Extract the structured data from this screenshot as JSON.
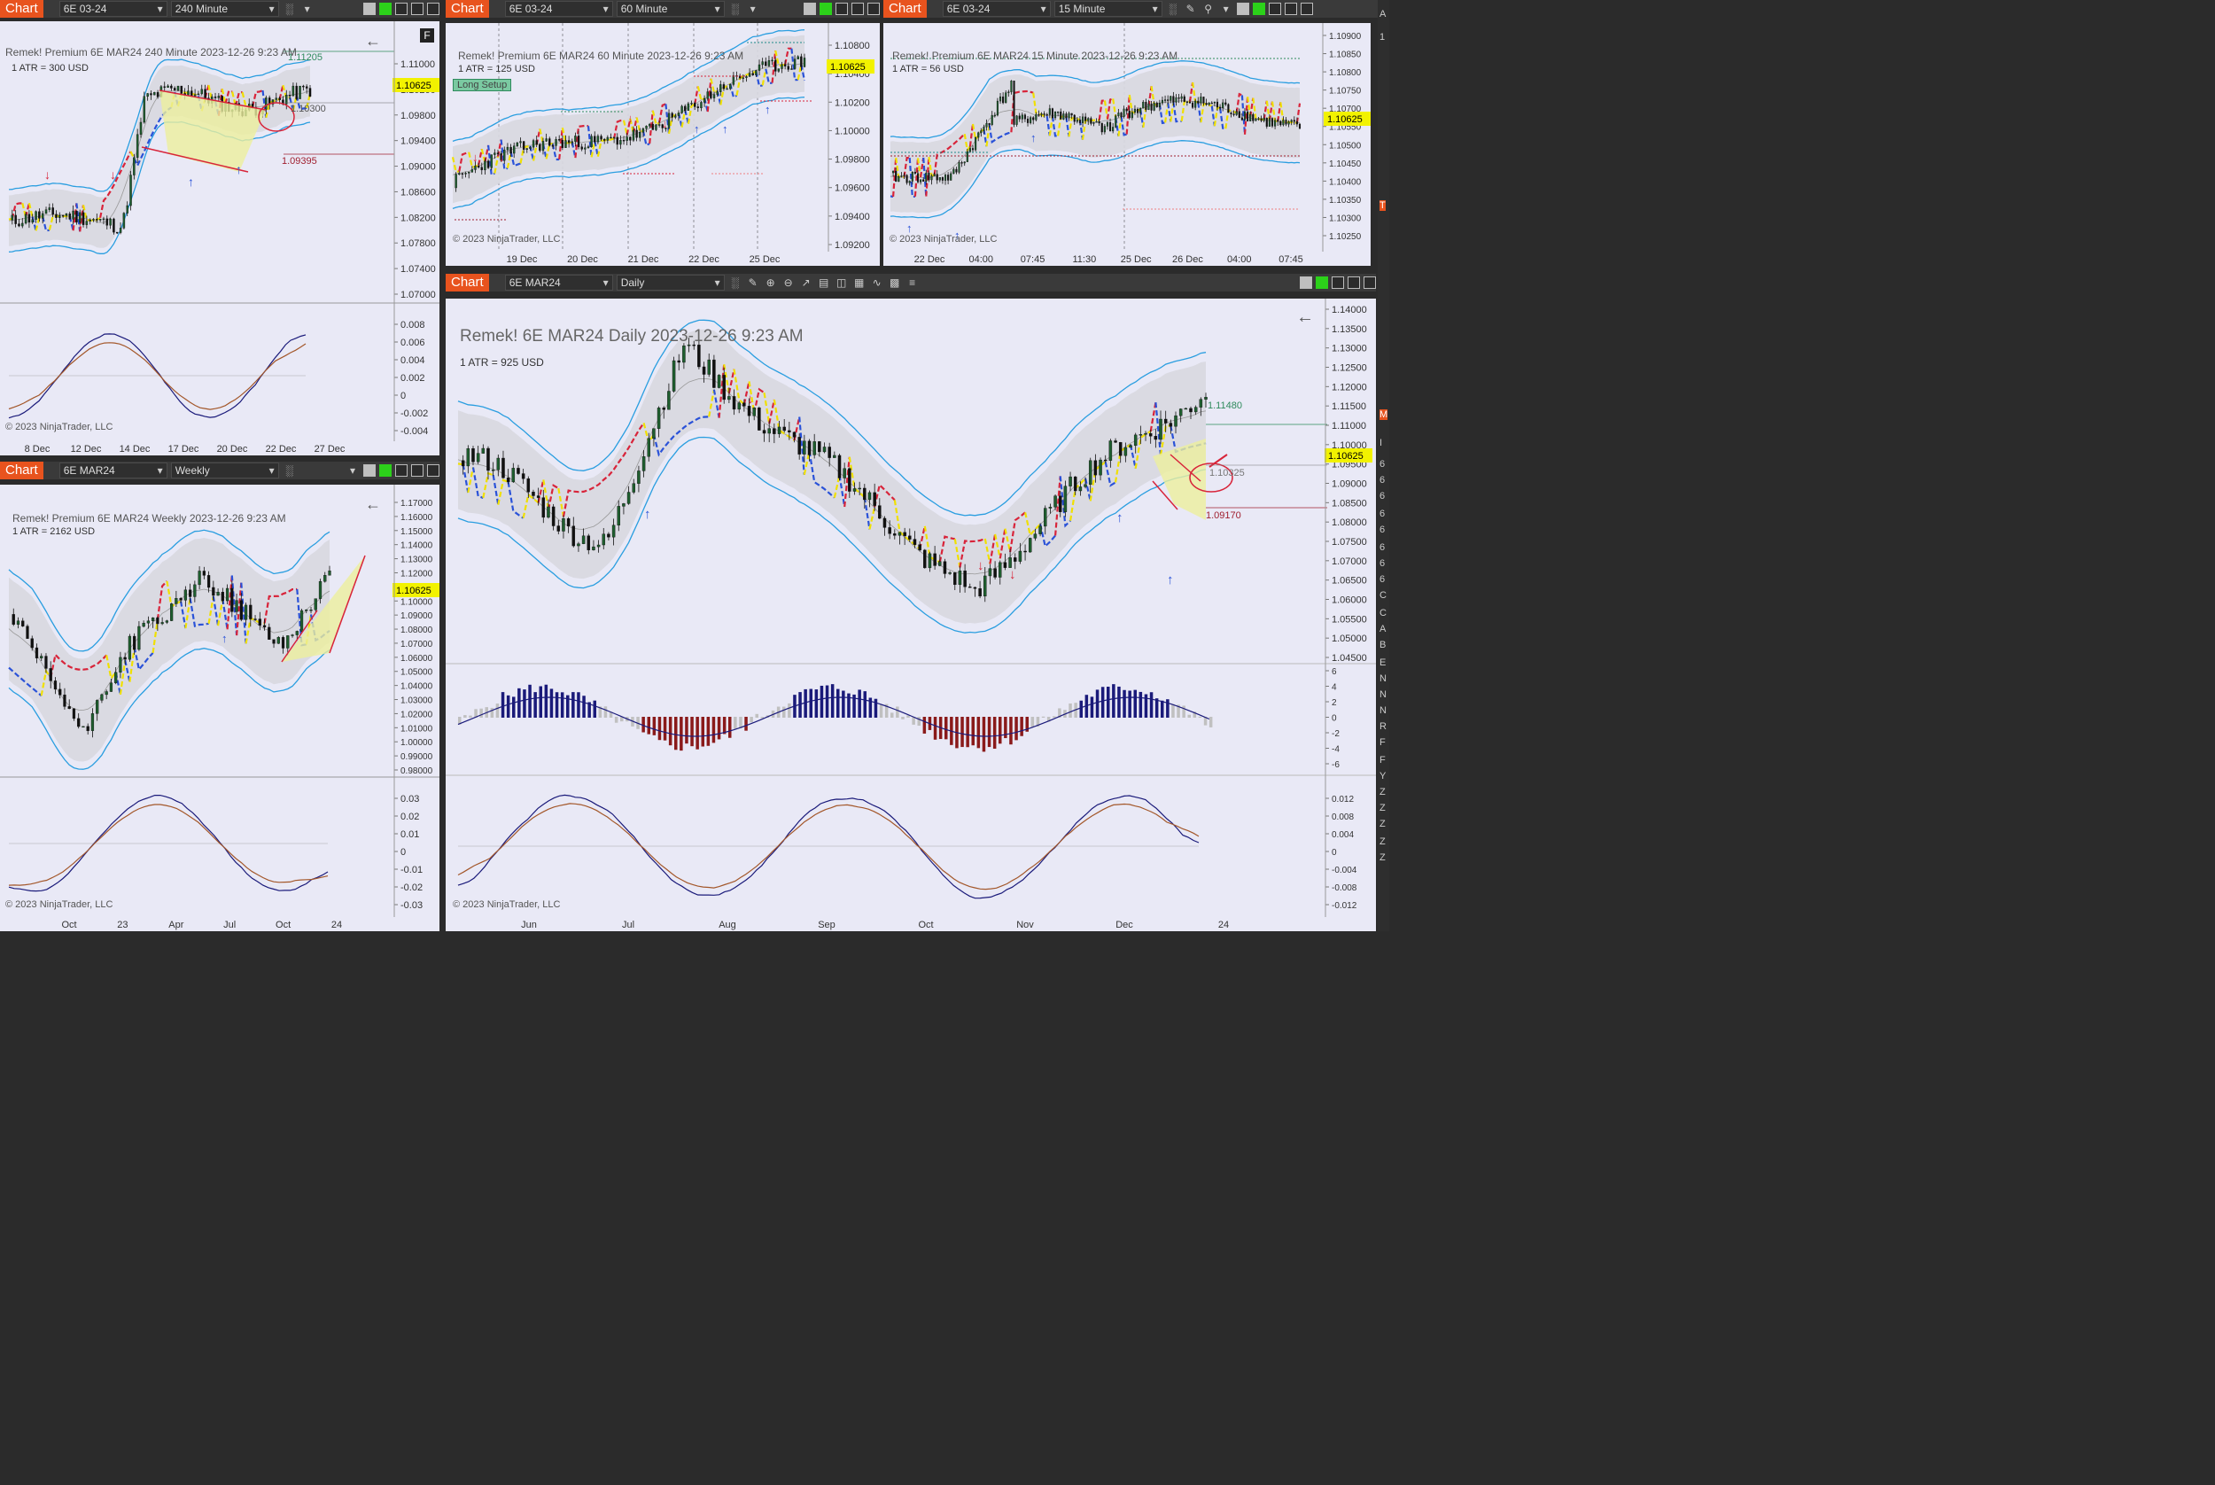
{
  "tab_label": "Chart",
  "colors": {
    "accent": "#e8531e",
    "pane": "#e9e9f6",
    "band": "#d8d8e0",
    "upper": "#2a9ee0",
    "bear": "#d8243a",
    "bull": "#2a52d8",
    "price_tag": "#f0f000",
    "pattern": "#ecef9e"
  },
  "charts": {
    "c240": {
      "instrument": "6E 03-24",
      "period": "240 Minute",
      "header": "Remek!  Premium  6E MAR24  240 Minute  2023-12-26 9:23 AM",
      "atr": "1 ATR = 300 USD",
      "last": "1.10625",
      "target": "1.11205",
      "mid": "1.10300",
      "stop": "1.09395",
      "flag": "F",
      "copyright": "© 2023 NinjaTrader, LLC",
      "yticks": [
        "1.11000",
        "1.10200",
        "1.09800",
        "1.09400",
        "1.09000",
        "1.08600",
        "1.08200",
        "1.07800",
        "1.07400",
        "1.07000"
      ],
      "osc_ticks": [
        "0.008",
        "0.006",
        "0.004",
        "0.002",
        "0",
        "-0.002",
        "-0.004"
      ],
      "xticks": [
        "8 Dec",
        "12 Dec",
        "14 Dec",
        "17 Dec",
        "20 Dec",
        "22 Dec",
        "27 Dec"
      ]
    },
    "c60": {
      "instrument": "6E 03-24",
      "period": "60 Minute",
      "header": "Remek!  Premium  6E MAR24  60 Minute  2023-12-26 9:23 AM",
      "atr": "1 ATR = 125 USD",
      "last": "1.10625",
      "setup": "Long Setup",
      "copyright": "© 2023 NinjaTrader, LLC",
      "yticks": [
        "1.10800",
        "1.10400",
        "1.10200",
        "1.10000",
        "1.09800",
        "1.09600",
        "1.09400",
        "1.09200"
      ],
      "xticks": [
        "19 Dec",
        "20 Dec",
        "21 Dec",
        "22 Dec",
        "25 Dec"
      ]
    },
    "c15": {
      "instrument": "6E 03-24",
      "period": "15 Minute",
      "header": "Remek!  Premium  6E MAR24  15 Minute  2023-12-26 9:23 AM",
      "atr": "1 ATR = 56 USD",
      "last": "1.10625",
      "copyright": "© 2023 NinjaTrader, LLC",
      "yticks": [
        "1.10900",
        "1.10850",
        "1.10800",
        "1.10750",
        "1.10700",
        "1.10550",
        "1.10500",
        "1.10450",
        "1.10400",
        "1.10350",
        "1.10300",
        "1.10250"
      ],
      "xticks": [
        "22 Dec",
        "04:00",
        "07:45",
        "11:30",
        "25 Dec",
        "26 Dec",
        "04:00",
        "07:45"
      ]
    },
    "cW": {
      "instrument": "6E MAR24",
      "period": "Weekly",
      "header": "Remek!  Premium  6E MAR24  Weekly  2023-12-26 9:23 AM",
      "atr": "1 ATR = 2162 USD",
      "last": "1.10625",
      "copyright": "© 2023 NinjaTrader, LLC",
      "yticks": [
        "1.17000",
        "1.16000",
        "1.15000",
        "1.14000",
        "1.13000",
        "1.12000",
        "1.11000",
        "1.10000",
        "1.09000",
        "1.08000",
        "1.07000",
        "1.06000",
        "1.05000",
        "1.04000",
        "1.03000",
        "1.02000",
        "1.01000",
        "1.00000",
        "0.99000",
        "0.98000"
      ],
      "osc_ticks": [
        "0.03",
        "0.02",
        "0.01",
        "0",
        "-0.01",
        "-0.02",
        "-0.03"
      ],
      "xticks": [
        "Oct",
        "23",
        "Apr",
        "Jul",
        "Oct",
        "24"
      ]
    },
    "cD": {
      "instrument": "6E MAR24",
      "period": "Daily",
      "header": "Remek!  6E MAR24  Daily  2023-12-26 9:23 AM",
      "atr": "1 ATR = 925 USD",
      "last": "1.10625",
      "target": "1.11480",
      "mid": "1.10325",
      "stop": "1.09170",
      "copyright": "© 2023 NinjaTrader, LLC",
      "yticks": [
        "1.14000",
        "1.13500",
        "1.13000",
        "1.12500",
        "1.12000",
        "1.11500",
        "1.11000",
        "1.10000",
        "1.09500",
        "1.09000",
        "1.08500",
        "1.08000",
        "1.07500",
        "1.07000",
        "1.06500",
        "1.06000",
        "1.05500",
        "1.05000",
        "1.04500"
      ],
      "hist_ticks": [
        "6",
        "4",
        "2",
        "0",
        "-2",
        "-4",
        "-6"
      ],
      "osc_ticks": [
        "0.012",
        "0.008",
        "0.004",
        "0",
        "-0.004",
        "-0.008",
        "-0.012"
      ],
      "xticks": [
        "Jun",
        "Jul",
        "Aug",
        "Sep",
        "Oct",
        "Nov",
        "Dec",
        "24"
      ]
    }
  },
  "right_edge_labels": [
    "A",
    "1",
    "T",
    "M",
    "I",
    "6",
    "6",
    "6",
    "6",
    "6",
    "6",
    "6",
    "6",
    "C",
    "C",
    "A",
    "B",
    "E",
    "N",
    "N",
    "N",
    "R",
    "F",
    "F",
    "Y",
    "Z",
    "Z",
    "Z",
    "Z",
    "Z"
  ]
}
